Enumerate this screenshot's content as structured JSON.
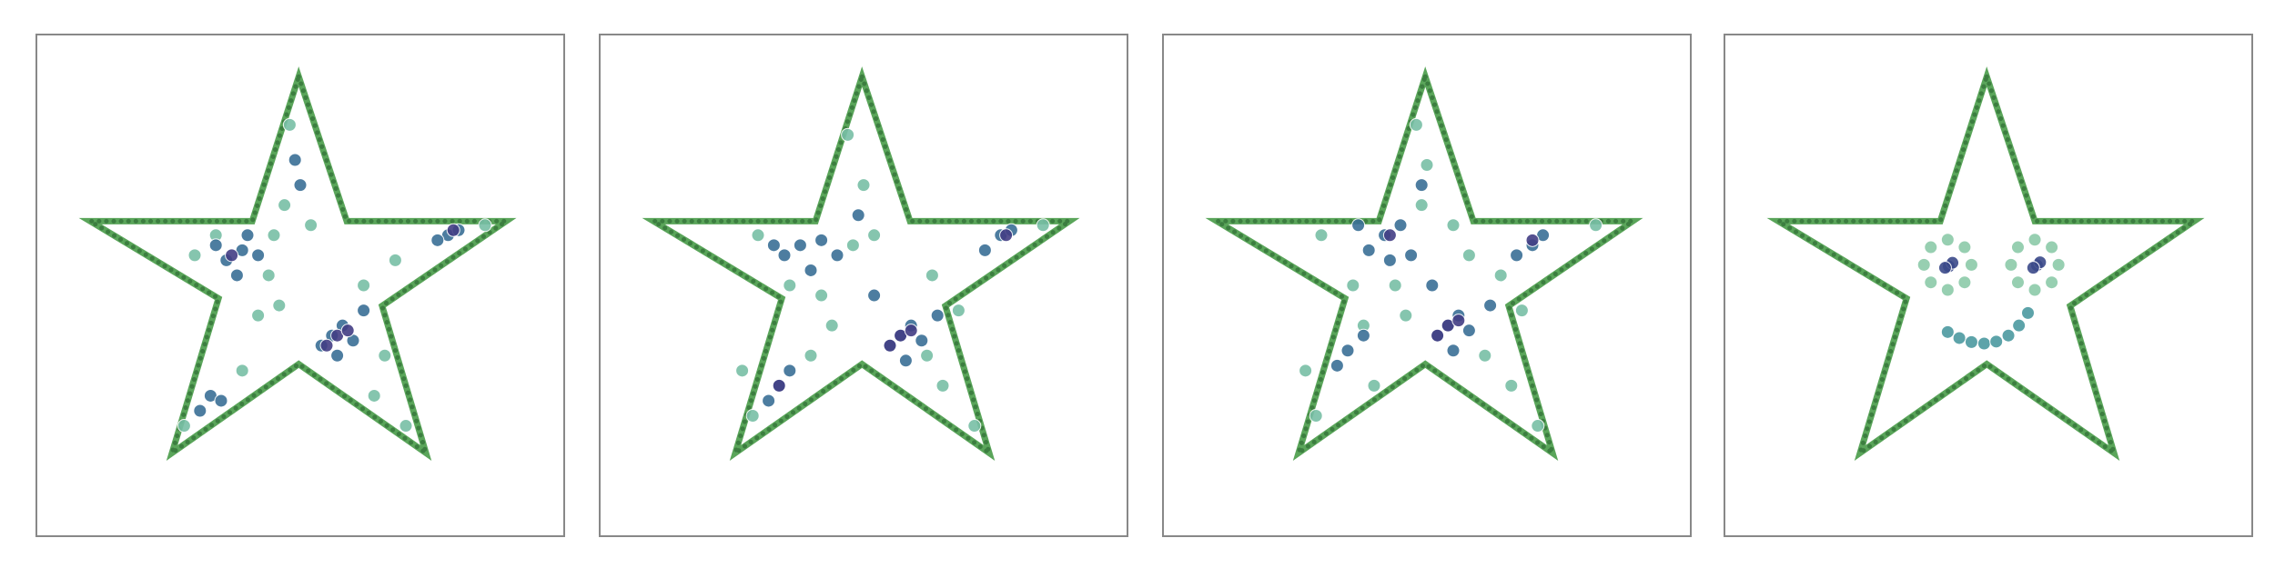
{
  "chart_data": [
    {
      "type": "scatter",
      "xlim": [
        0,
        1
      ],
      "ylim": [
        0,
        1
      ],
      "series": [
        {
          "color": "#5aa55a",
          "line": true,
          "x": [
            0.497,
            0.588,
            0.89,
            0.655,
            0.738,
            0.497,
            0.257,
            0.345,
            0.102,
            0.409
          ],
          "y": [
            0.916,
            0.628,
            0.628,
            0.459,
            0.166,
            0.343,
            0.166,
            0.474,
            0.628,
            0.628
          ]
        },
        {
          "color": "#78bfa6",
          "x": [
            0.45,
            0.3,
            0.48,
            0.62,
            0.68,
            0.42,
            0.46,
            0.64,
            0.7,
            0.39,
            0.28,
            0.52,
            0.85,
            0.34,
            0.47,
            0.66,
            0.44
          ],
          "y": [
            0.6,
            0.56,
            0.82,
            0.5,
            0.55,
            0.44,
            0.46,
            0.28,
            0.22,
            0.33,
            0.22,
            0.62,
            0.62,
            0.6,
            0.66,
            0.36,
            0.52
          ]
        },
        {
          "color": "#3a6f96",
          "x": [
            0.39,
            0.36,
            0.42,
            0.38,
            0.56,
            0.58,
            0.54,
            0.6,
            0.57,
            0.33,
            0.31,
            0.35,
            0.78,
            0.8,
            0.76,
            0.49,
            0.5,
            0.34,
            0.4,
            0.62
          ],
          "y": [
            0.57,
            0.55,
            0.56,
            0.52,
            0.4,
            0.42,
            0.38,
            0.39,
            0.36,
            0.28,
            0.25,
            0.27,
            0.6,
            0.61,
            0.59,
            0.75,
            0.7,
            0.58,
            0.6,
            0.45
          ]
        },
        {
          "color": "#433e85",
          "x": [
            0.57,
            0.55,
            0.59,
            0.79,
            0.37
          ],
          "y": [
            0.4,
            0.38,
            0.41,
            0.61,
            0.56
          ]
        }
      ]
    },
    {
      "type": "scatter",
      "xlim": [
        0,
        1
      ],
      "ylim": [
        0,
        1
      ],
      "series": [
        {
          "color": "#5aa55a",
          "line": true,
          "x": [
            0.497,
            0.588,
            0.89,
            0.655,
            0.738,
            0.497,
            0.257,
            0.345,
            0.102,
            0.409
          ],
          "y": [
            0.916,
            0.628,
            0.628,
            0.459,
            0.166,
            0.343,
            0.166,
            0.474,
            0.628,
            0.628
          ]
        },
        {
          "color": "#78bfa6",
          "x": [
            0.3,
            0.47,
            0.5,
            0.63,
            0.68,
            0.42,
            0.4,
            0.65,
            0.71,
            0.44,
            0.29,
            0.52,
            0.84,
            0.36,
            0.48,
            0.62,
            0.27
          ],
          "y": [
            0.6,
            0.8,
            0.7,
            0.52,
            0.45,
            0.48,
            0.36,
            0.3,
            0.22,
            0.42,
            0.24,
            0.6,
            0.62,
            0.5,
            0.58,
            0.36,
            0.33
          ]
        },
        {
          "color": "#3a6f96",
          "x": [
            0.38,
            0.35,
            0.42,
            0.4,
            0.57,
            0.59,
            0.55,
            0.61,
            0.58,
            0.34,
            0.32,
            0.36,
            0.76,
            0.78,
            0.73,
            0.49,
            0.45,
            0.33,
            0.52,
            0.64
          ],
          "y": [
            0.58,
            0.56,
            0.59,
            0.53,
            0.4,
            0.42,
            0.38,
            0.39,
            0.35,
            0.3,
            0.27,
            0.33,
            0.6,
            0.61,
            0.57,
            0.64,
            0.56,
            0.58,
            0.48,
            0.44
          ]
        },
        {
          "color": "#433e85",
          "x": [
            0.57,
            0.55,
            0.59,
            0.77,
            0.34
          ],
          "y": [
            0.4,
            0.38,
            0.41,
            0.6,
            0.3
          ]
        }
      ]
    },
    {
      "type": "scatter",
      "xlim": [
        0,
        1
      ],
      "ylim": [
        0,
        1
      ],
      "series": [
        {
          "color": "#5aa55a",
          "line": true,
          "x": [
            0.497,
            0.588,
            0.89,
            0.655,
            0.738,
            0.497,
            0.257,
            0.345,
            0.102,
            0.409
          ],
          "y": [
            0.916,
            0.628,
            0.628,
            0.459,
            0.166,
            0.343,
            0.166,
            0.474,
            0.628,
            0.628
          ]
        },
        {
          "color": "#78bfa6",
          "x": [
            0.3,
            0.48,
            0.5,
            0.64,
            0.68,
            0.44,
            0.4,
            0.66,
            0.71,
            0.46,
            0.29,
            0.55,
            0.82,
            0.36,
            0.49,
            0.61,
            0.27,
            0.58,
            0.38
          ],
          "y": [
            0.6,
            0.82,
            0.74,
            0.52,
            0.45,
            0.5,
            0.3,
            0.3,
            0.22,
            0.44,
            0.24,
            0.62,
            0.62,
            0.5,
            0.66,
            0.36,
            0.33,
            0.56,
            0.42
          ]
        },
        {
          "color": "#3a6f96",
          "x": [
            0.42,
            0.39,
            0.45,
            0.43,
            0.54,
            0.56,
            0.52,
            0.58,
            0.55,
            0.35,
            0.33,
            0.38,
            0.7,
            0.72,
            0.67,
            0.49,
            0.47,
            0.37,
            0.51,
            0.62
          ],
          "y": [
            0.6,
            0.57,
            0.62,
            0.55,
            0.42,
            0.44,
            0.4,
            0.41,
            0.37,
            0.37,
            0.34,
            0.4,
            0.58,
            0.6,
            0.56,
            0.7,
            0.56,
            0.62,
            0.5,
            0.46
          ]
        },
        {
          "color": "#433e85",
          "x": [
            0.54,
            0.52,
            0.56,
            0.7,
            0.43
          ],
          "y": [
            0.42,
            0.4,
            0.43,
            0.59,
            0.6
          ]
        }
      ]
    },
    {
      "type": "scatter",
      "xlim": [
        0,
        1
      ],
      "ylim": [
        0,
        1
      ],
      "series": [
        {
          "color": "#5aa55a",
          "line": true,
          "x": [
            0.497,
            0.588,
            0.89,
            0.655,
            0.738,
            0.497,
            0.257,
            0.345,
            0.102,
            0.409
          ],
          "y": [
            0.916,
            0.628,
            0.628,
            0.459,
            0.166,
            0.343,
            0.166,
            0.474,
            0.628,
            0.628
          ]
        },
        {
          "color": "#8ccaa9",
          "x": [
            0.468,
            0.455,
            0.423,
            0.391,
            0.378,
            0.391,
            0.423,
            0.455,
            0.633,
            0.62,
            0.588,
            0.556,
            0.543,
            0.556,
            0.588,
            0.62
          ],
          "y": [
            0.541,
            0.576,
            0.591,
            0.576,
            0.541,
            0.506,
            0.491,
            0.506,
            0.541,
            0.576,
            0.591,
            0.576,
            0.541,
            0.506,
            0.491,
            0.506
          ]
        },
        {
          "color": "#4c9aa0",
          "x": [
            0.423,
            0.445,
            0.468,
            0.492,
            0.515,
            0.538,
            0.558,
            0.575
          ],
          "y": [
            0.407,
            0.395,
            0.387,
            0.384,
            0.388,
            0.4,
            0.42,
            0.445
          ]
        },
        {
          "color": "#3b4a8a",
          "x": [
            0.425,
            0.432,
            0.418,
            0.592,
            0.598,
            0.585
          ],
          "y": [
            0.538,
            0.545,
            0.535,
            0.54,
            0.546,
            0.535
          ]
        }
      ]
    }
  ]
}
